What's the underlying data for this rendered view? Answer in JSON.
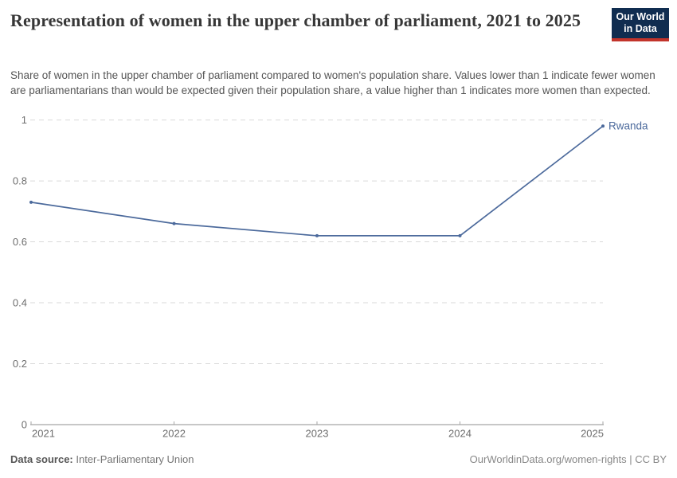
{
  "header": {
    "title": "Representation of women in the upper chamber of parliament, 2021 to 2025",
    "subtitle": "Share of women in the upper chamber of parliament compared to women's population share. Values lower than 1 indicate fewer women are parliamentarians than would be expected given their population share, a value higher than 1 indicates more women than expected.",
    "logo": {
      "line1": "Our World",
      "line2": "in Data",
      "bg_color": "#102d50",
      "accent_color": "#c2342b"
    }
  },
  "chart_data": {
    "type": "line",
    "title": "Representation of women in the upper chamber of parliament",
    "xlabel": "",
    "ylabel": "",
    "xlim": [
      2021,
      2025
    ],
    "ylim": [
      0,
      1
    ],
    "grid": "horizontal-dashed",
    "legend_position": "end-of-line-label",
    "x_ticks": [
      {
        "value": 2021,
        "label": "2021"
      },
      {
        "value": 2022,
        "label": "2022"
      },
      {
        "value": 2023,
        "label": "2023"
      },
      {
        "value": 2024,
        "label": "2024"
      },
      {
        "value": 2025,
        "label": "2025"
      }
    ],
    "y_ticks": [
      {
        "value": 0,
        "label": "0"
      },
      {
        "value": 0.2,
        "label": "0.2"
      },
      {
        "value": 0.4,
        "label": "0.4"
      },
      {
        "value": 0.6,
        "label": "0.6"
      },
      {
        "value": 0.8,
        "label": "0.8"
      },
      {
        "value": 1,
        "label": "1"
      }
    ],
    "series": [
      {
        "name": "Rwanda",
        "color": "#4c6a9c",
        "x": [
          2021,
          2022,
          2023,
          2024,
          2025
        ],
        "values": [
          0.73,
          0.66,
          0.62,
          0.62,
          0.98
        ]
      }
    ]
  },
  "footer": {
    "source_label": "Data source:",
    "source_value": "Inter-Parliamentary Union",
    "credit": "OurWorldinData.org/women-rights | CC BY"
  }
}
